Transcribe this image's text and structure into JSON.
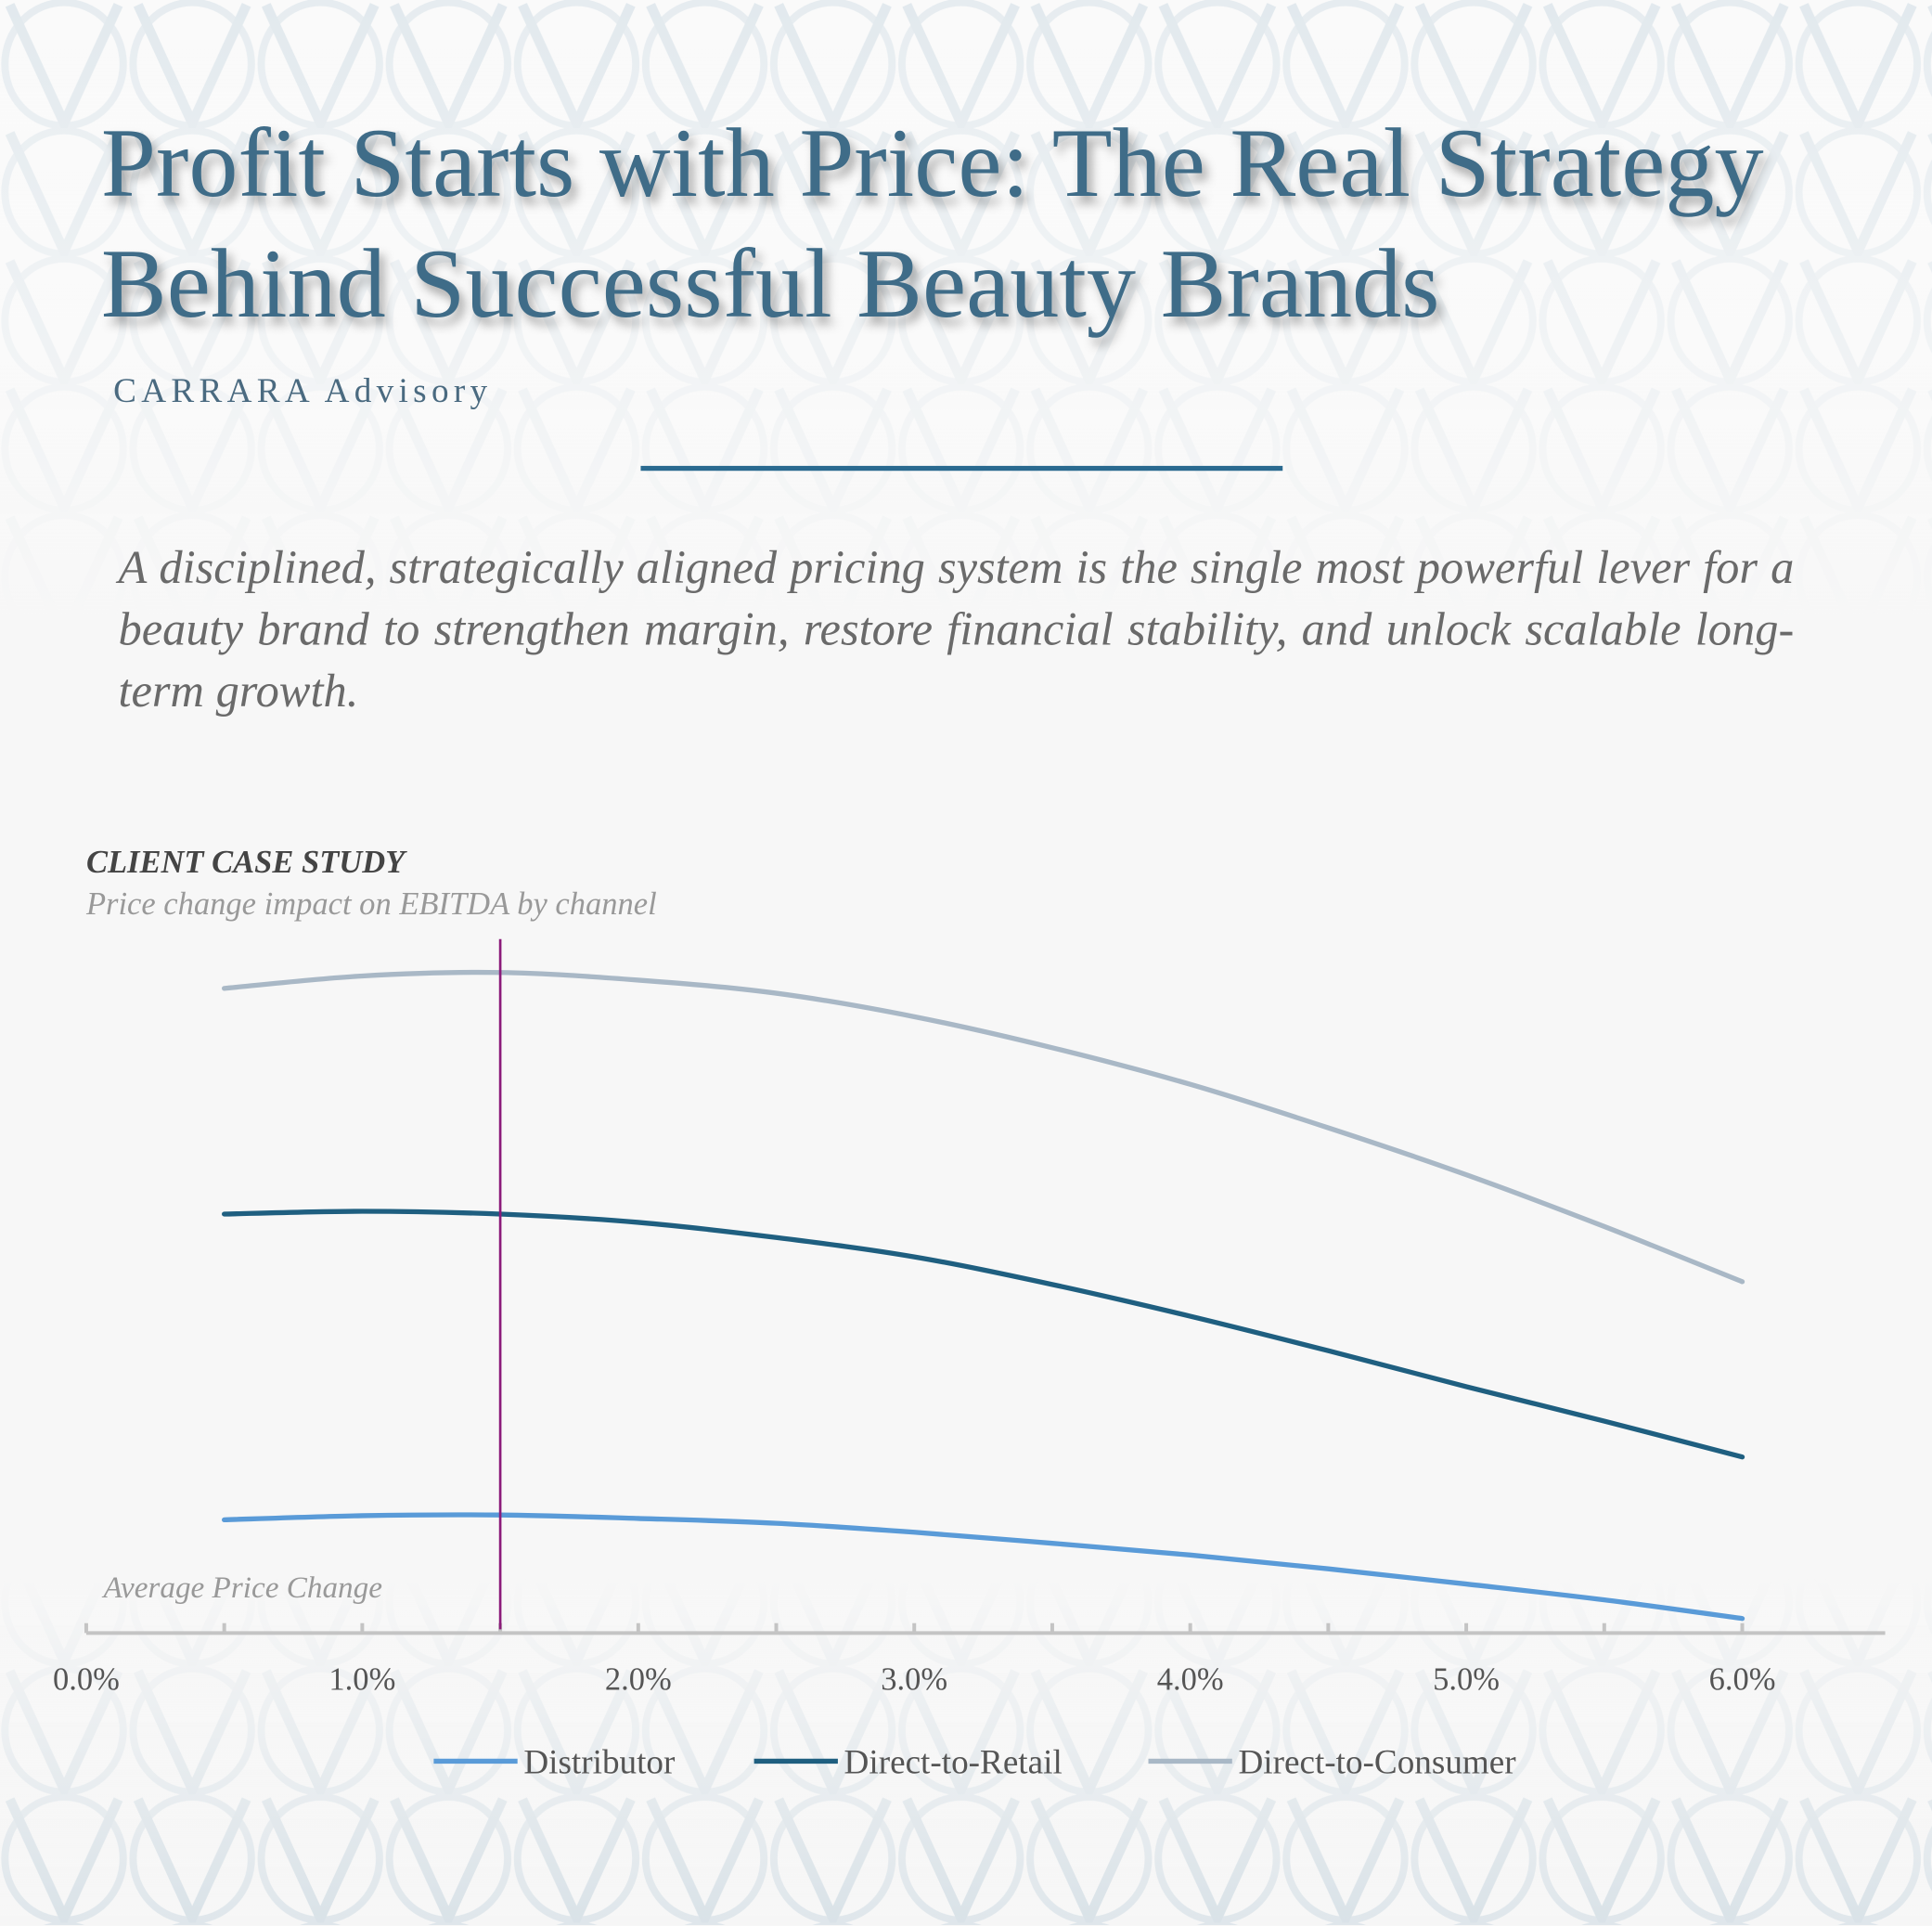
{
  "title_lines": [
    "Profit Starts with Price: The Real Strategy",
    "Behind Successful Beauty Brands"
  ],
  "brand": "CARRARA Advisory",
  "intro": "A disciplined, strategically aligned pricing system is the single most powerful lever for a beauty brand to strengthen margin, restore financial stability, and unlock scalable long-term growth.",
  "chart_data": {
    "type": "line",
    "title": "CLIENT CASE STUDY",
    "subtitle": "Price change impact on EBITDA by channel",
    "x_label": "Average Price Change",
    "x": [
      0.5,
      1.0,
      1.5,
      2.0,
      2.5,
      3.0,
      3.5,
      4.0,
      4.5,
      5.0,
      5.5,
      6.0
    ],
    "series": [
      {
        "name": "Distributor",
        "color": "#5a9bd8",
        "values": [
          16.4,
          17.0,
          17.1,
          16.6,
          15.9,
          14.6,
          13.0,
          11.3,
          9.3,
          7.1,
          4.8,
          2.1
        ]
      },
      {
        "name": "Direct-to-Retail",
        "color": "#1f5f80",
        "values": [
          60.7,
          61.1,
          60.7,
          59.5,
          57.3,
          54.5,
          50.5,
          45.9,
          40.9,
          35.7,
          30.7,
          25.5
        ]
      },
      {
        "name": "Direct-to-Consumer",
        "color": "#a9b8c6",
        "values": [
          93.4,
          95.2,
          95.7,
          94.6,
          92.7,
          89.3,
          84.8,
          79.5,
          73.2,
          66.4,
          58.9,
          50.9
        ]
      }
    ],
    "xlim": [
      0,
      6.5
    ],
    "xticks": [
      {
        "value": 0,
        "label": "0.0%"
      },
      {
        "value": 1,
        "label": "1.0%"
      },
      {
        "value": 2,
        "label": "2.0%"
      },
      {
        "value": 3,
        "label": "3.0%"
      },
      {
        "value": 4,
        "label": "4.0%"
      },
      {
        "value": 5,
        "label": "5.0%"
      },
      {
        "value": 6,
        "label": "6.0%"
      }
    ],
    "xminor_ticks": [
      0.5,
      1.5,
      2.5,
      3.5,
      4.5,
      5.5
    ],
    "ylim": [
      0,
      100
    ],
    "reference_x": 1.5,
    "reference_color": "#8b1a7a",
    "legend": "bottom"
  }
}
